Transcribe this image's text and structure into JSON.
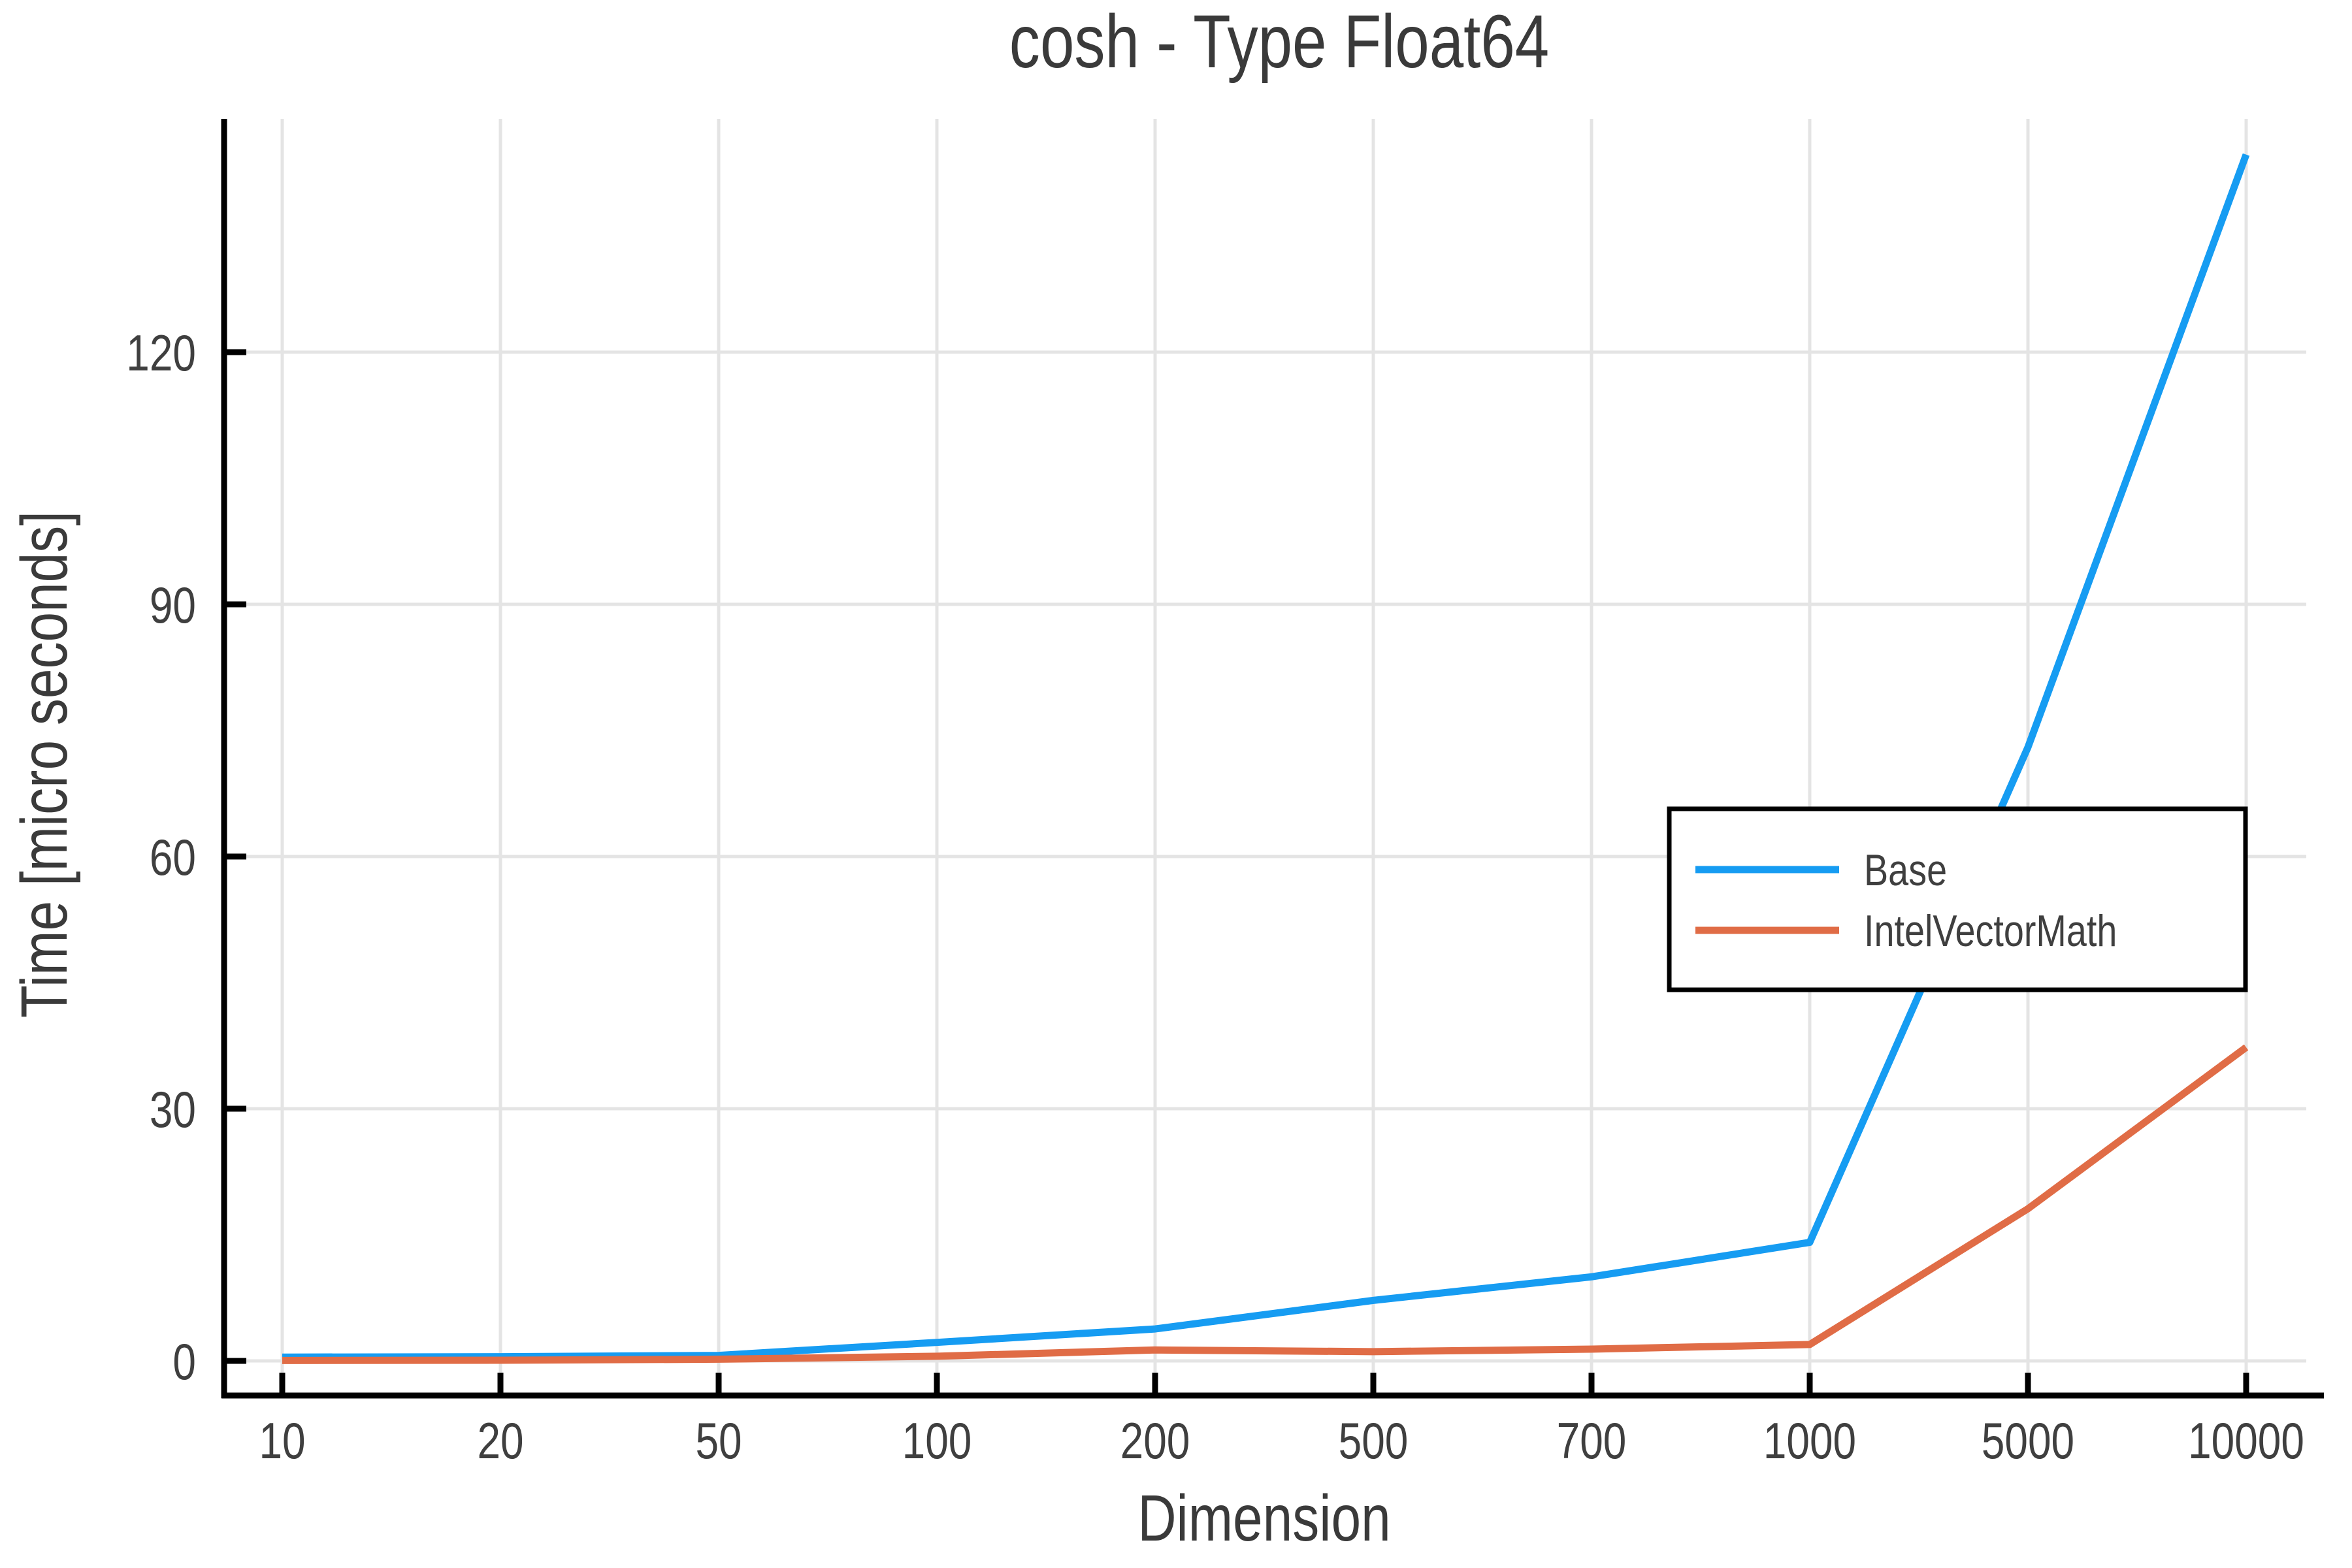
{
  "title": "cosh - Type Float64",
  "axes": {
    "x_label": "Dimension",
    "y_label": "Time [micro seconds]",
    "x_tick_labels": [
      "10",
      "20",
      "50",
      "100",
      "200",
      "500",
      "700",
      "1000",
      "5000",
      "10000"
    ],
    "y_tick_labels": [
      "0",
      "30",
      "60",
      "90",
      "120"
    ]
  },
  "legend": {
    "entries": [
      {
        "label": "Base",
        "color": "#169CF2"
      },
      {
        "label": "IntelVectorMath",
        "color": "#E06C46"
      }
    ]
  },
  "colors": {
    "series_base": "#169CF2",
    "series_intelvectormath": "#E06C46",
    "grid": "#E4E4E4",
    "axis": "#000000",
    "text": "#3F3F3F",
    "title_text": "#3A3A3A",
    "legend_border": "#000000",
    "legend_background": "#ffffff"
  },
  "chart_data": {
    "type": "line",
    "title": "cosh - Type Float64",
    "xlabel": "Dimension",
    "ylabel": "Time [micro seconds]",
    "categories": [
      10,
      20,
      50,
      100,
      200,
      500,
      700,
      1000,
      5000,
      10000
    ],
    "x_scale_note": "category ticks evenly spaced",
    "series": [
      {
        "name": "Base",
        "color": "#169CF2",
        "values": [
          0.45,
          0.5,
          0.65,
          2.2,
          3.8,
          7.2,
          10.0,
          14.1,
          73.0,
          143.5
        ]
      },
      {
        "name": "IntelVectorMath",
        "color": "#E06C46",
        "values": [
          0.05,
          0.08,
          0.2,
          0.55,
          1.3,
          1.1,
          1.4,
          1.95,
          18.1,
          37.3
        ]
      }
    ],
    "ylim": [
      0,
      145
    ],
    "y_ticks": [
      0,
      30,
      60,
      90,
      120
    ],
    "grid": true,
    "legend_position": "right-center-boxed"
  }
}
